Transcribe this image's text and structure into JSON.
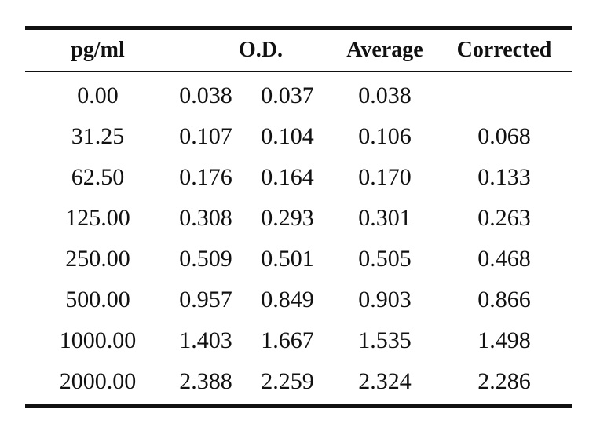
{
  "table": {
    "headers": {
      "concentration": "pg/ml",
      "od": "O.D.",
      "average": "Average",
      "corrected": "Corrected"
    },
    "rows": [
      {
        "concentration": "0.00",
        "od1": "0.038",
        "od2": "0.037",
        "average": "0.038",
        "corrected": ""
      },
      {
        "concentration": "31.25",
        "od1": "0.107",
        "od2": "0.104",
        "average": "0.106",
        "corrected": "0.068"
      },
      {
        "concentration": "62.50",
        "od1": "0.176",
        "od2": "0.164",
        "average": "0.170",
        "corrected": "0.133"
      },
      {
        "concentration": "125.00",
        "od1": "0.308",
        "od2": "0.293",
        "average": "0.301",
        "corrected": "0.263"
      },
      {
        "concentration": "250.00",
        "od1": "0.509",
        "od2": "0.501",
        "average": "0.505",
        "corrected": "0.468"
      },
      {
        "concentration": "500.00",
        "od1": "0.957",
        "od2": "0.849",
        "average": "0.903",
        "corrected": "0.866"
      },
      {
        "concentration": "1000.00",
        "od1": "1.403",
        "od2": "1.667",
        "average": "1.535",
        "corrected": "1.498"
      },
      {
        "concentration": "2000.00",
        "od1": "2.388",
        "od2": "2.259",
        "average": "2.324",
        "corrected": "2.286"
      }
    ]
  }
}
